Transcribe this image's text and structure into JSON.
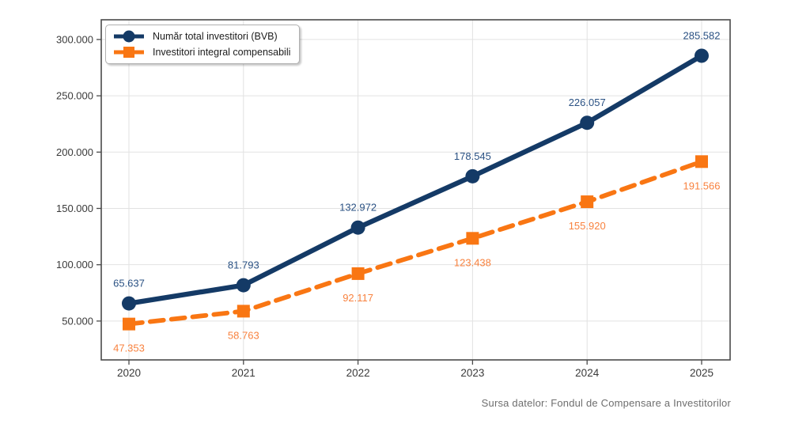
{
  "chart_data": {
    "type": "line",
    "categories": [
      "2020",
      "2021",
      "2022",
      "2023",
      "2024",
      "2025"
    ],
    "series": [
      {
        "name": "Număr total investitori (BVB)",
        "values": [
          65637,
          81793,
          132972,
          178545,
          226057,
          285582
        ],
        "labels": [
          "65.637",
          "81.793",
          "132.972",
          "178.545",
          "226.057",
          "285.582"
        ],
        "color": "#143a66",
        "label_color": "#2a5183",
        "marker": "circle",
        "line_style": "solid",
        "label_position": "above"
      },
      {
        "name": "Investitori integral compensabili",
        "values": [
          47353,
          58763,
          92117,
          123438,
          155920,
          191566
        ],
        "labels": [
          "47.353",
          "58.763",
          "92.117",
          "123.438",
          "155.920",
          "191.566"
        ],
        "color": "#f97613",
        "label_color": "#f8823f",
        "marker": "square",
        "line_style": "dashed",
        "label_position": "below"
      }
    ],
    "y_axis": {
      "min": 15500,
      "max": 317500,
      "ticks": [
        {
          "value": 50000,
          "label": "50.000"
        },
        {
          "value": 100000,
          "label": "100.000"
        },
        {
          "value": 150000,
          "label": "150.000"
        },
        {
          "value": 200000,
          "label": "200.000"
        },
        {
          "value": 250000,
          "label": "250.000"
        },
        {
          "value": 300000,
          "label": "300.000"
        }
      ]
    },
    "legend_position": "top-left",
    "grid": true,
    "source": "Sursa datelor: Fondul de Compensare a Investitorilor"
  },
  "colors": {
    "grid": "#e2e2e2",
    "plot_border": "#4a4a4a",
    "tick": "#4a4a4a",
    "tick_label": "#3a3a3a",
    "source_text": "#6e6e6e"
  }
}
